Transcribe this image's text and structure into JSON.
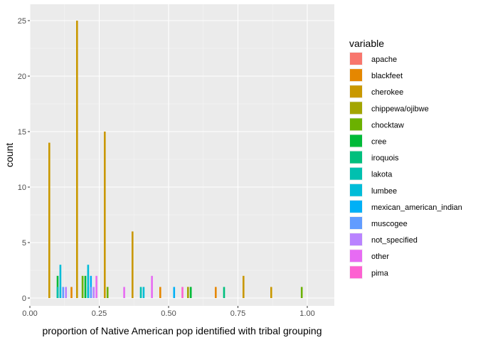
{
  "chart_data": {
    "type": "bar",
    "xlabel": "proportion of Native American pop identified with tribal grouping",
    "ylabel": "count",
    "xlim": [
      0.0,
      1.0
    ],
    "ylim": [
      0,
      25
    ],
    "x_ticks": [
      0.0,
      0.25,
      0.5,
      0.75,
      1.0
    ],
    "x_tick_labels": [
      "0.00",
      "0.25",
      "0.50",
      "0.75",
      "1.00"
    ],
    "y_ticks": [
      0,
      5,
      10,
      15,
      20,
      25
    ],
    "y_tick_labels": [
      "0",
      "5",
      "10",
      "15",
      "20",
      "25"
    ],
    "grid": true,
    "legend_title": "variable",
    "legend_position": "right",
    "bin_width": 0.1,
    "series": [
      {
        "name": "apache",
        "color": "#F8766D",
        "bars": [
          [
            0.57,
            1
          ]
        ]
      },
      {
        "name": "blackfeet",
        "color": "#E58700",
        "bars": [
          [
            0.15,
            1
          ],
          [
            0.47,
            1
          ],
          [
            0.67,
            1
          ]
        ]
      },
      {
        "name": "cherokee",
        "color": "#C99800",
        "bars": [
          [
            0.07,
            14
          ],
          [
            0.17,
            25
          ],
          [
            0.27,
            15
          ],
          [
            0.37,
            6
          ],
          [
            0.77,
            2
          ],
          [
            0.87,
            1
          ]
        ]
      },
      {
        "name": "chippewa/ojibwe",
        "color": "#A3A500",
        "bars": [
          [
            0.57,
            1
          ]
        ]
      },
      {
        "name": "chocktaw",
        "color": "#6BB100",
        "bars": [
          [
            0.19,
            2
          ],
          [
            0.28,
            1
          ],
          [
            0.58,
            1
          ],
          [
            0.98,
            1
          ]
        ]
      },
      {
        "name": "cree",
        "color": "#00BA38",
        "bars": [
          [
            0.1,
            2
          ],
          [
            0.2,
            2
          ],
          [
            0.58,
            1
          ]
        ]
      },
      {
        "name": "iroquois",
        "color": "#00BF7D",
        "bars": [
          [
            0.7,
            1
          ]
        ]
      },
      {
        "name": "lakota",
        "color": "#00C0AF",
        "bars": [
          [
            0.1,
            1
          ],
          [
            0.21,
            1
          ],
          [
            0.4,
            1
          ]
        ]
      },
      {
        "name": "lumbee",
        "color": "#00BCD8",
        "bars": [
          [
            0.11,
            3
          ],
          [
            0.21,
            3
          ],
          [
            0.41,
            1
          ]
        ]
      },
      {
        "name": "mexican_american_indian",
        "color": "#00B0F6",
        "bars": [
          [
            0.22,
            2
          ],
          [
            0.52,
            1
          ]
        ]
      },
      {
        "name": "muscogee",
        "color": "#619CFF",
        "bars": [
          [
            0.12,
            1
          ],
          [
            0.22,
            1
          ]
        ]
      },
      {
        "name": "not_specified",
        "color": "#B983FF",
        "bars": [
          [
            0.13,
            1
          ],
          [
            0.23,
            1
          ]
        ]
      },
      {
        "name": "other",
        "color": "#E76BF3",
        "bars": [
          [
            0.24,
            2
          ],
          [
            0.34,
            1
          ],
          [
            0.44,
            2
          ]
        ]
      },
      {
        "name": "pima",
        "color": "#FD61D1",
        "bars": [
          [
            0.55,
            1
          ]
        ]
      }
    ]
  }
}
